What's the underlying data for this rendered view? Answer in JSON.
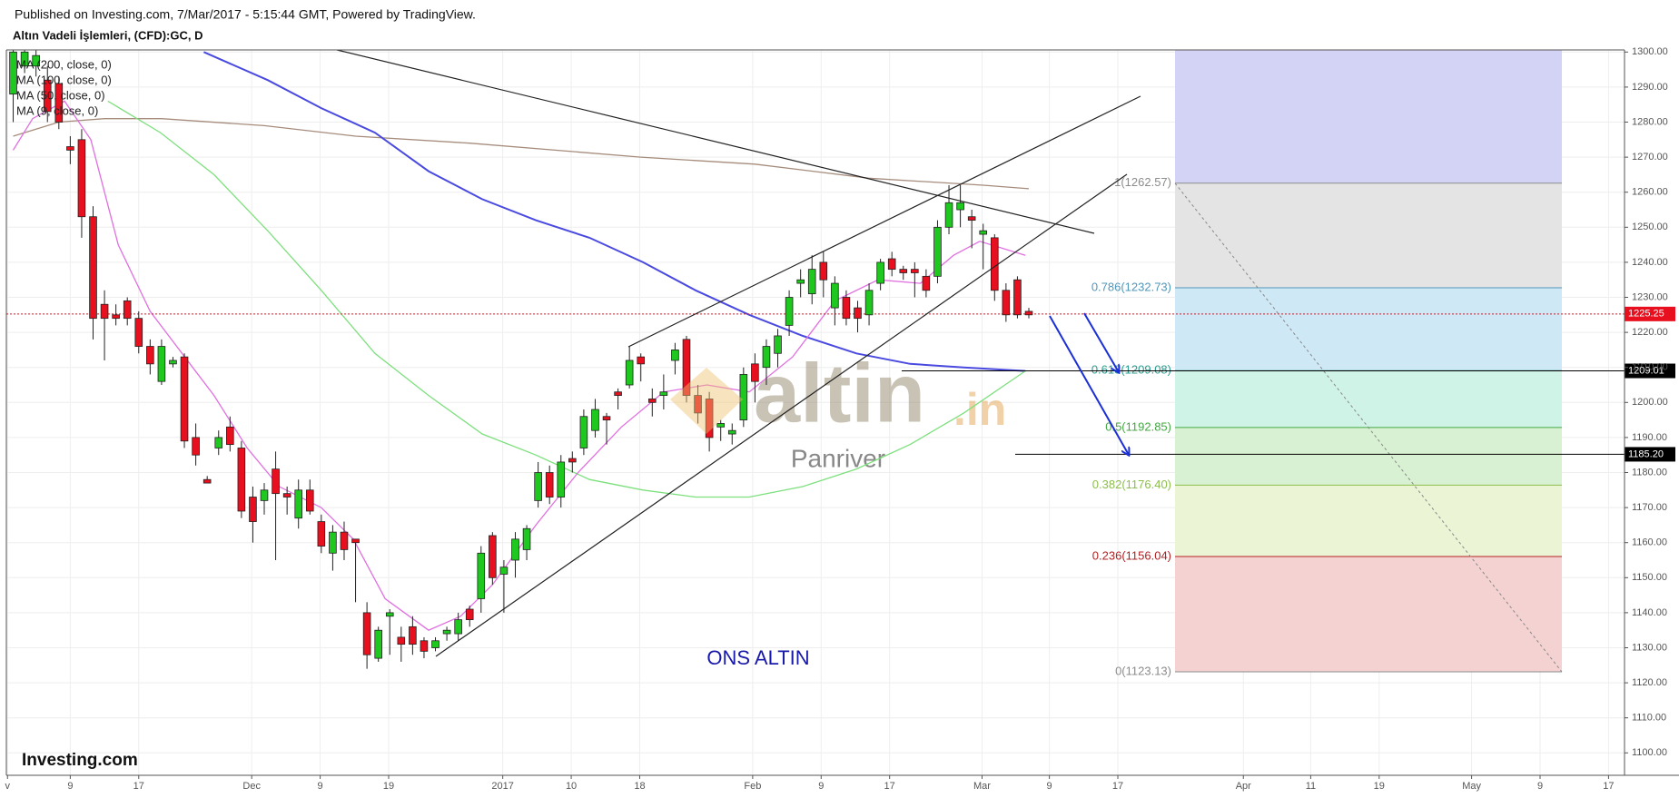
{
  "header": {
    "published": "Published on Investing.com, 7/Mar/2017 - 5:15:44 GMT, Powered by TradingView.",
    "symbol": "Altın Vadeli İşlemleri, (CFD):GC, D"
  },
  "chart_data": {
    "type": "candlestick",
    "xlim": [
      -0.6,
      141.2
    ],
    "xticks": [
      {
        "value": -0.5,
        "label": "v"
      },
      {
        "value": 5,
        "label": "9"
      },
      {
        "value": 11,
        "label": "17"
      },
      {
        "value": 20.9,
        "label": "Dec"
      },
      {
        "value": 26.9,
        "label": "9"
      },
      {
        "value": 32.9,
        "label": "19"
      },
      {
        "value": 42.9,
        "label": "2017"
      },
      {
        "value": 48.9,
        "label": "10"
      },
      {
        "value": 54.9,
        "label": "18"
      },
      {
        "value": 64.8,
        "label": "Feb"
      },
      {
        "value": 70.8,
        "label": "9"
      },
      {
        "value": 76.8,
        "label": "17"
      },
      {
        "value": 84.9,
        "label": "Mar"
      },
      {
        "value": 90.8,
        "label": "9"
      },
      {
        "value": 96.8,
        "label": "17"
      },
      {
        "value": 107.8,
        "label": "Apr"
      },
      {
        "value": 113.7,
        "label": "11"
      },
      {
        "value": 119.7,
        "label": "19"
      },
      {
        "value": 127.8,
        "label": "May"
      },
      {
        "value": 133.8,
        "label": "9"
      },
      {
        "value": 139.8,
        "label": "17"
      }
    ],
    "ylim": [
      1093.6,
      1300.6
    ],
    "yticks": [
      {
        "value": 1100,
        "label": "1100.00"
      },
      {
        "value": 1110,
        "label": "1110.00"
      },
      {
        "value": 1120,
        "label": "1120.00"
      },
      {
        "value": 1130,
        "label": "1130.00"
      },
      {
        "value": 1140,
        "label": "1140.00"
      },
      {
        "value": 1150,
        "label": "1150.00"
      },
      {
        "value": 1160,
        "label": "1160.00"
      },
      {
        "value": 1170,
        "label": "1170.00"
      },
      {
        "value": 1180,
        "label": "1180.00"
      },
      {
        "value": 1190,
        "label": "1190.00"
      },
      {
        "value": 1200,
        "label": "1200.00"
      },
      {
        "value": 1210,
        "label": "1210.00"
      },
      {
        "value": 1220,
        "label": "1220.00"
      },
      {
        "value": 1230,
        "label": "1230.00"
      },
      {
        "value": 1240,
        "label": "1240.00"
      },
      {
        "value": 1250,
        "label": "1250.00"
      },
      {
        "value": 1260,
        "label": "1260.00"
      },
      {
        "value": 1270,
        "label": "1270.00"
      },
      {
        "value": 1280,
        "label": "1280.00"
      },
      {
        "value": 1290,
        "label": "1290.00"
      },
      {
        "value": 1300,
        "label": "1300.00"
      }
    ],
    "grid": true,
    "candles": {
      "up_color": "#1ec81e",
      "down_color": "#e8101e",
      "open": [
        1288,
        1296,
        1296,
        1292,
        1291,
        1273,
        1275,
        1253,
        1228,
        1225,
        1229,
        1224,
        1216,
        1206,
        1211,
        1213,
        1190,
        1178,
        1187,
        1193,
        1187,
        1173,
        1172,
        1181,
        1174,
        1167,
        1175,
        1166,
        1157,
        1163,
        1161,
        1140,
        1127,
        1139,
        1133,
        1136,
        1132,
        1130,
        1134,
        1134,
        1141,
        1144,
        1162,
        1151,
        1155,
        1158,
        1172,
        1180,
        1173,
        1184,
        1187,
        1192,
        1196,
        1203,
        1205,
        1213,
        1201,
        1202,
        1212,
        1218,
        1202,
        1201,
        1193,
        1191,
        1195,
        1211,
        1210,
        1214,
        1222,
        1234,
        1231,
        1240,
        1227,
        1230,
        1227,
        1225,
        1234,
        1241,
        1238,
        1238,
        1236,
        1236,
        1250,
        1255,
        1253,
        1248,
        1247,
        1232,
        1235,
        1226
      ],
      "high": [
        1301,
        1301,
        1301,
        1296,
        1293,
        1276,
        1278,
        1256,
        1232,
        1228,
        1230,
        1226,
        1218,
        1218,
        1213,
        1214,
        1194,
        1179,
        1192,
        1196,
        1189,
        1176,
        1177,
        1186,
        1176,
        1178,
        1178,
        1168,
        1165,
        1166,
        1161,
        1143,
        1136,
        1141,
        1136,
        1139,
        1133,
        1133,
        1136,
        1140,
        1142,
        1159,
        1163,
        1155,
        1163,
        1165,
        1183,
        1182,
        1185,
        1186,
        1198,
        1201,
        1197,
        1204,
        1216,
        1214,
        1204,
        1208,
        1217,
        1219,
        1205,
        1203,
        1195,
        1194,
        1210,
        1214,
        1218,
        1221,
        1232,
        1238,
        1242,
        1243,
        1236,
        1232,
        1229,
        1234,
        1241,
        1243,
        1239,
        1240,
        1238,
        1252,
        1262,
        1262,
        1255,
        1251,
        1248,
        1234,
        1236,
        1227
      ],
      "low": [
        1280,
        1294,
        1293,
        1280,
        1278,
        1268,
        1247,
        1218,
        1212,
        1222,
        1222,
        1214,
        1208,
        1205,
        1210,
        1187,
        1182,
        1177,
        1185,
        1186,
        1167,
        1160,
        1168,
        1155,
        1168,
        1164,
        1168,
        1157,
        1152,
        1155,
        1143,
        1124,
        1126,
        1128,
        1126,
        1128,
        1127,
        1129,
        1132,
        1132,
        1136,
        1140,
        1148,
        1140,
        1150,
        1155,
        1170,
        1171,
        1170,
        1180,
        1185,
        1190,
        1188,
        1198,
        1204,
        1206,
        1196,
        1198,
        1208,
        1200,
        1194,
        1186,
        1189,
        1188,
        1193,
        1200,
        1205,
        1210,
        1219,
        1230,
        1228,
        1230,
        1222,
        1222,
        1220,
        1222,
        1232,
        1236,
        1235,
        1230,
        1230,
        1234,
        1248,
        1250,
        1244,
        1238,
        1229,
        1223,
        1224,
        1224
      ],
      "close": [
        1300,
        1300,
        1299,
        1283,
        1280,
        1272,
        1253,
        1224,
        1224,
        1224,
        1224,
        1216,
        1211,
        1216,
        1212,
        1189,
        1185,
        1177,
        1190,
        1188,
        1169,
        1166,
        1175,
        1174,
        1173,
        1175,
        1169,
        1159,
        1163,
        1158,
        1160,
        1128,
        1135,
        1140,
        1131,
        1131,
        1129,
        1132,
        1135,
        1138,
        1138,
        1157,
        1150,
        1153,
        1161,
        1164,
        1180,
        1173,
        1183,
        1183,
        1196,
        1198,
        1195,
        1202,
        1212,
        1211,
        1200,
        1203,
        1215,
        1202,
        1197,
        1190,
        1194,
        1192,
        1208,
        1206,
        1216,
        1219,
        1230,
        1235,
        1238,
        1235,
        1234,
        1224,
        1224,
        1232,
        1240,
        1238,
        1237,
        1237,
        1232,
        1250,
        1257,
        1257,
        1252,
        1249,
        1232,
        1225,
        1225,
        1225
      ]
    },
    "series": [
      {
        "name": "MA (200, close, 0)",
        "color": "#a68c7c",
        "x": [
          0,
          4,
          8,
          13,
          22,
          30,
          40,
          55,
          65,
          75,
          85,
          89
        ],
        "values": [
          1276,
          1280,
          1281,
          1281,
          1279,
          1276,
          1274,
          1270,
          1268,
          1264,
          1262,
          1261
        ]
      },
      {
        "name": "MA (100, close, 0)",
        "color": "#4a4ae0",
        "x": [
          16.7,
          22.3,
          27,
          31.7,
          36.4,
          41.1,
          45.8,
          50.5,
          55.2,
          59.8,
          64.5,
          69.2,
          73.9,
          78.6,
          83.3,
          88.7
        ],
        "values": [
          1300,
          1292,
          1284,
          1277,
          1266,
          1258,
          1252,
          1247,
          1240,
          1232,
          1225,
          1219,
          1214,
          1211,
          1210,
          1209
        ]
      },
      {
        "name": "MA (50, close, 0)",
        "color": "#7de07d",
        "x": [
          8.3,
          12.9,
          17.6,
          22.3,
          27,
          31.7,
          36.4,
          41.1,
          45.8,
          50.5,
          55.2,
          59.8,
          64.5,
          69.2,
          73.9,
          78.6,
          83.3,
          88.7
        ],
        "values": [
          1286,
          1277,
          1265,
          1249,
          1232,
          1214,
          1202,
          1191,
          1185,
          1178,
          1175,
          1173,
          1173,
          1176,
          1181,
          1188,
          1197,
          1209
        ]
      },
      {
        "name": "MA (9, close, 0)",
        "color": "#e070e0",
        "x": [
          0,
          1.7,
          4.5,
          6.8,
          9.2,
          12,
          14.8,
          17.6,
          20.5,
          23.3,
          27,
          29.8,
          32.6,
          36.4,
          39.2,
          42,
          45.8,
          49.5,
          53.3,
          57,
          60.8,
          64.5,
          68.3,
          72,
          75.8,
          79.5,
          82.4,
          84.7,
          88.7
        ],
        "values": [
          1272,
          1281,
          1286,
          1275,
          1245,
          1226,
          1214,
          1202,
          1187,
          1176,
          1170,
          1161,
          1144,
          1135,
          1139,
          1148,
          1165,
          1180,
          1193,
          1203,
          1205,
          1203,
          1213,
          1229,
          1235,
          1234,
          1242,
          1246,
          1242
        ]
      }
    ],
    "price_lines": [
      {
        "value": 1225.25,
        "label": "1225.25",
        "color": "#e8101e"
      },
      {
        "value": 1209.01,
        "label": "1209.01",
        "color": "#000000"
      },
      {
        "value": 1185.2,
        "label": "1185.20",
        "color": "#000000"
      }
    ],
    "fib_top_fill": "#d3d3f5",
    "fib_levels": [
      {
        "value": 1262.57,
        "label": "1(1262.57)",
        "color": "#8c8c8c",
        "fill": "#e4e4e4"
      },
      {
        "value": 1232.73,
        "label": "0.786(1232.73)",
        "color": "#4f97bb",
        "fill": "#cfe8f5"
      },
      {
        "value": 1209.08,
        "label": "0.618(1209.08)",
        "color": "#2a9d8f",
        "fill": "#cff3e6"
      },
      {
        "value": 1192.85,
        "label": "0.5(1192.85)",
        "color": "#43a843",
        "fill": "#d9f1d3"
      },
      {
        "value": 1176.4,
        "label": "0.382(1176.40)",
        "color": "#8cbf4a",
        "fill": "#ecf4d6"
      },
      {
        "value": 1156.04,
        "label": "0.236(1156.04)",
        "color": "#b22222",
        "fill": "#f5d2d2"
      },
      {
        "value": 1123.13,
        "label": "0(1123.13)",
        "color": "#8c8c8c"
      }
    ],
    "annotation": "ONS ALTIN",
    "watermark": [
      "altin",
      ".in",
      "Panriver"
    ],
    "logo": "Investing.com"
  }
}
